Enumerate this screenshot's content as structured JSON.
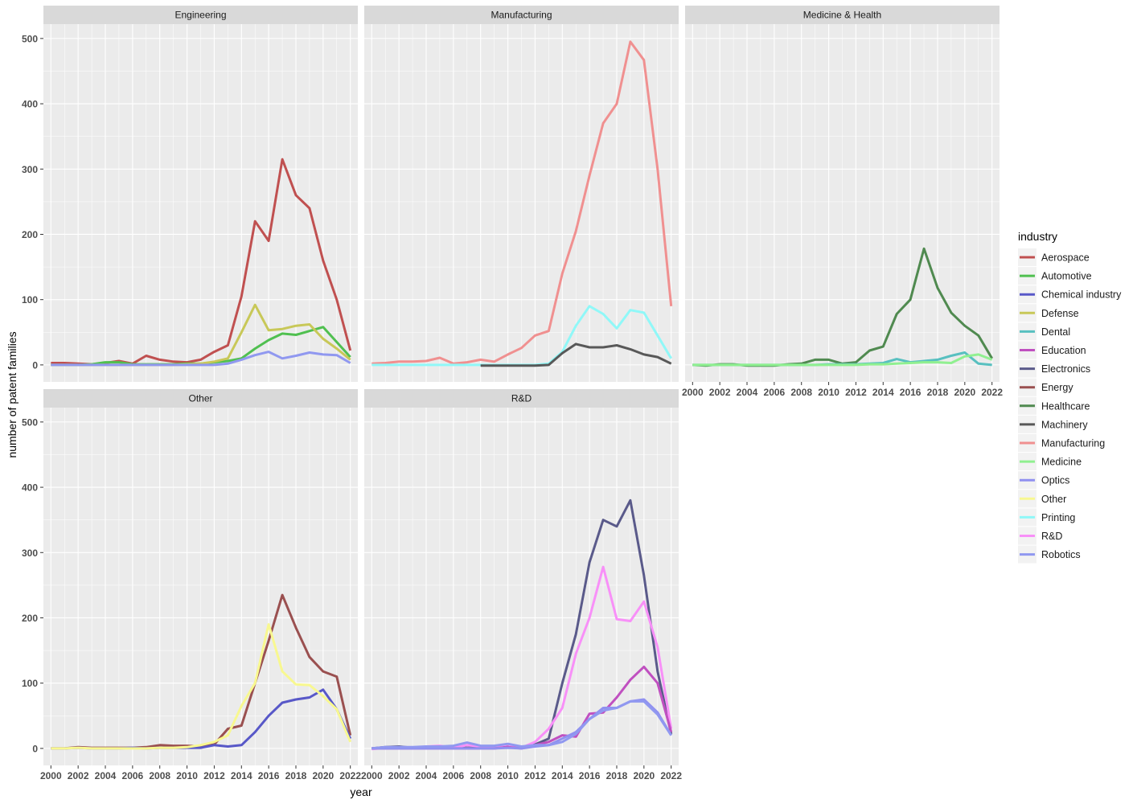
{
  "chart_data": {
    "type": "line",
    "xlabel": "year",
    "ylabel": "number of patent families",
    "legend_title": "industry",
    "legend_position": "right",
    "grid": true,
    "xlim": [
      2000,
      2022
    ],
    "ylim": [
      0,
      520
    ],
    "x_ticks": [
      2000,
      2002,
      2004,
      2006,
      2008,
      2010,
      2012,
      2014,
      2016,
      2018,
      2020,
      2022
    ],
    "y_ticks": [
      0,
      100,
      200,
      300,
      400,
      500
    ],
    "x": [
      2000,
      2001,
      2002,
      2003,
      2004,
      2005,
      2006,
      2007,
      2008,
      2009,
      2010,
      2011,
      2012,
      2013,
      2014,
      2015,
      2016,
      2017,
      2018,
      2019,
      2020,
      2021,
      2022
    ],
    "legend": [
      {
        "name": "Aerospace",
        "color": "#C05050"
      },
      {
        "name": "Automotive",
        "color": "#50C050"
      },
      {
        "name": "Chemical industry",
        "color": "#5858C8"
      },
      {
        "name": "Defense",
        "color": "#C8C858"
      },
      {
        "name": "Dental",
        "color": "#58C0C0"
      },
      {
        "name": "Education",
        "color": "#C050C0"
      },
      {
        "name": "Electronics",
        "color": "#5A5A8A"
      },
      {
        "name": "Energy",
        "color": "#9A5050"
      },
      {
        "name": "Healthcare",
        "color": "#508A50"
      },
      {
        "name": "Machinery",
        "color": "#585858"
      },
      {
        "name": "Manufacturing",
        "color": "#F09090"
      },
      {
        "name": "Medicine",
        "color": "#90F090"
      },
      {
        "name": "Optics",
        "color": "#9090F0"
      },
      {
        "name": "Other",
        "color": "#F8F890"
      },
      {
        "name": "Printing",
        "color": "#90F8F8"
      },
      {
        "name": "R&D",
        "color": "#F890F8"
      },
      {
        "name": "Robotics",
        "color": "#9098F0"
      }
    ],
    "panels": [
      {
        "title": "Engineering",
        "series": [
          {
            "name": "Aerospace",
            "values": [
              3,
              3,
              2,
              1,
              3,
              6,
              2,
              14,
              8,
              5,
              4,
              8,
              20,
              30,
              105,
              220,
              190,
              315,
              260,
              240,
              160,
              100,
              22
            ]
          },
          {
            "name": "Automotive",
            "values": [
              0,
              0,
              0,
              1,
              4,
              4,
              1,
              1,
              1,
              1,
              2,
              2,
              4,
              6,
              10,
              25,
              38,
              48,
              46,
              52,
              58,
              35,
              12
            ]
          },
          {
            "name": "Defense",
            "values": [
              0,
              0,
              0,
              0,
              0,
              0,
              0,
              0,
              0,
              0,
              1,
              2,
              5,
              10,
              50,
              92,
              53,
              55,
              60,
              62,
              40,
              25,
              8
            ]
          },
          {
            "name": "Robotics",
            "values": [
              0,
              0,
              0,
              0,
              0,
              0,
              0,
              0,
              0,
              0,
              0,
              0,
              0,
              2,
              8,
              15,
              20,
              10,
              14,
              19,
              16,
              15,
              3
            ]
          }
        ]
      },
      {
        "title": "Manufacturing",
        "series": [
          {
            "name": "Manufacturing",
            "values": [
              2,
              3,
              5,
              5,
              6,
              11,
              2,
              4,
              8,
              5,
              16,
              26,
              45,
              52,
              140,
              205,
              290,
              370,
              400,
              495,
              467,
              300,
              90
            ]
          },
          {
            "name": "Printing",
            "values": [
              0,
              0,
              0,
              0,
              0,
              0,
              0,
              0,
              0,
              0,
              0,
              0,
              0,
              2,
              20,
              60,
              90,
              78,
              56,
              84,
              80,
              45,
              10
            ]
          },
          {
            "name": "Machinery",
            "values": [
              null,
              null,
              null,
              null,
              null,
              null,
              null,
              null,
              -1,
              -1,
              -1,
              -1,
              -1,
              0,
              18,
              32,
              27,
              27,
              30,
              24,
              16,
              12,
              2
            ]
          }
        ]
      },
      {
        "title": "Medicine & Health",
        "series": [
          {
            "name": "Healthcare",
            "values": [
              0,
              -1,
              1,
              1,
              -1,
              -1,
              -1,
              1,
              2,
              8,
              8,
              2,
              4,
              22,
              28,
              78,
              100,
              178,
              118,
              80,
              60,
              45,
              10
            ]
          },
          {
            "name": "Dental",
            "values": [
              0,
              0,
              0,
              0,
              0,
              0,
              0,
              0,
              0,
              0,
              1,
              1,
              1,
              2,
              3,
              9,
              4,
              6,
              8,
              14,
              19,
              2,
              0
            ]
          },
          {
            "name": "Medicine",
            "values": [
              0,
              0,
              0,
              0,
              0,
              0,
              0,
              0,
              0,
              0,
              0,
              0,
              0,
              1,
              1,
              2,
              3,
              4,
              4,
              3,
              13,
              16,
              8
            ]
          }
        ]
      },
      {
        "title": "Other",
        "series": [
          {
            "name": "Energy",
            "values": [
              0,
              0,
              2,
              1,
              1,
              1,
              1,
              2,
              5,
              4,
              4,
              3,
              6,
              30,
              35,
              100,
              165,
              235,
              185,
              140,
              118,
              110,
              20
            ]
          },
          {
            "name": "Chemical industry",
            "values": [
              0,
              0,
              1,
              0,
              0,
              0,
              1,
              0,
              1,
              1,
              1,
              1,
              5,
              3,
              5,
              25,
              50,
              70,
              75,
              78,
              90,
              60,
              15
            ]
          },
          {
            "name": "Other",
            "values": [
              0,
              0,
              1,
              0,
              0,
              0,
              0,
              0,
              1,
              1,
              2,
              5,
              10,
              20,
              65,
              100,
              190,
              118,
              98,
              97,
              80,
              60,
              10
            ]
          }
        ]
      },
      {
        "title": "R&D",
        "series": [
          {
            "name": "Electronics",
            "values": [
              0,
              2,
              3,
              1,
              1,
              2,
              2,
              1,
              1,
              1,
              4,
              1,
              6,
              15,
              100,
              175,
              285,
              350,
              340,
              380,
              265,
              118,
              22
            ]
          },
          {
            "name": "R&D",
            "values": [
              -1,
              1,
              1,
              0,
              3,
              4,
              1,
              5,
              3,
              3,
              6,
              1,
              10,
              30,
              62,
              145,
              200,
              278,
              198,
              195,
              225,
              155,
              30
            ]
          },
          {
            "name": "Education",
            "values": [
              0,
              0,
              0,
              0,
              0,
              0,
              0,
              0,
              0,
              0,
              2,
              0,
              5,
              10,
              20,
              18,
              53,
              55,
              78,
              105,
              125,
              100,
              25
            ]
          },
          {
            "name": "Optics",
            "values": [
              0,
              0,
              0,
              0,
              0,
              0,
              0,
              0,
              0,
              0,
              1,
              0,
              3,
              5,
              15,
              25,
              45,
              62,
              62,
              72,
              75,
              55,
              20
            ]
          },
          {
            "name": "Robotics",
            "values": [
              0,
              2,
              2,
              2,
              3,
              3,
              4,
              9,
              4,
              4,
              7,
              3,
              5,
              5,
              10,
              22,
              45,
              58,
              62,
              72,
              72,
              52,
              20
            ]
          }
        ]
      }
    ]
  }
}
